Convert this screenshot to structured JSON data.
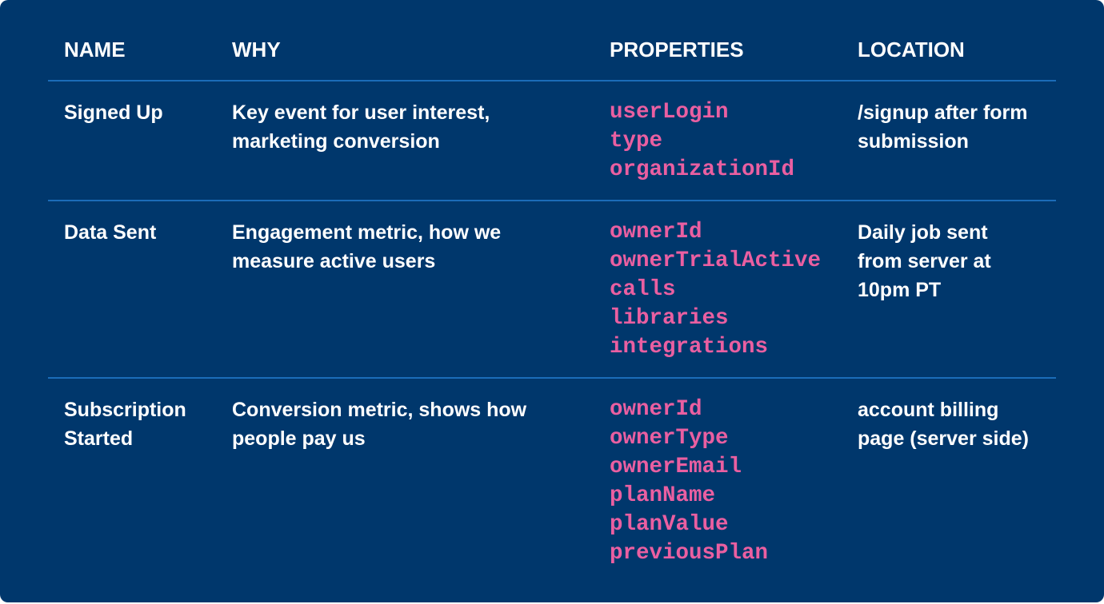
{
  "headers": {
    "name": "NAME",
    "why": "WHY",
    "properties": "PROPERTIES",
    "location": "LOCATION"
  },
  "colors": {
    "background": "#00376c",
    "divider": "#1b6cb8",
    "property": "#ea5fa1",
    "text": "#ffffff"
  },
  "rows": [
    {
      "name": "Signed Up",
      "why": "Key event for user interest, marketing conversion",
      "properties": [
        "userLogin",
        "type",
        "organizationId"
      ],
      "location": "/signup after form submission"
    },
    {
      "name": "Data Sent",
      "why": "Engagement metric, how we measure active users",
      "properties": [
        "ownerId",
        "ownerTrialActive",
        "calls",
        "libraries",
        "integrations"
      ],
      "location": "Daily job sent from server at 10pm PT"
    },
    {
      "name": "Subscription Started",
      "why": "Conversion metric, shows how people pay us",
      "properties": [
        "ownerId",
        "ownerType",
        "ownerEmail",
        "planName",
        "planValue",
        "previousPlan"
      ],
      "location": "account billing page (server side)"
    }
  ]
}
